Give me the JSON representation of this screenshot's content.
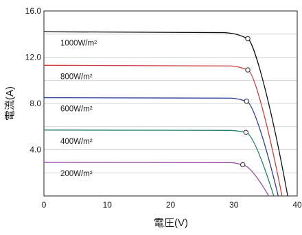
{
  "chart_data": {
    "type": "line",
    "title": "",
    "xlabel": "電圧(V)",
    "ylabel": "電流(A)",
    "xlim": [
      0,
      40
    ],
    "ylim": [
      0,
      16
    ],
    "x_ticks": [
      0,
      10,
      20,
      30,
      40
    ],
    "y_ticks": [
      4,
      8,
      12,
      16
    ],
    "x_tick_labels": [
      "0",
      "10",
      "20",
      "30",
      "40"
    ],
    "y_tick_labels": [
      "4.0",
      "8.0",
      "12.0",
      "16.0"
    ],
    "grid": "horizontal",
    "legend": "inline labels",
    "series": [
      {
        "name": "1000W/m²",
        "color": "#111111",
        "isc": 14.2,
        "voc": 38.5,
        "knee_v": 28.5,
        "mpp": {
          "v": 32.2,
          "i": 13.6
        },
        "points": [
          {
            "v": 0,
            "i": 14.2
          },
          {
            "v": 28.5,
            "i": 14.1
          },
          {
            "v": 30.5,
            "i": 13.9
          },
          {
            "v": 32.2,
            "i": 13.6
          },
          {
            "v": 33.5,
            "i": 12.9
          },
          {
            "v": 35.0,
            "i": 10.5
          },
          {
            "v": 36.5,
            "i": 6.6
          },
          {
            "v": 38.5,
            "i": 0
          }
        ]
      },
      {
        "name": "800W/m²",
        "color": "#d13a3a",
        "isc": 11.3,
        "voc": 37.6,
        "knee_v": 29.5,
        "mpp": {
          "v": 32.2,
          "i": 10.9
        },
        "points": [
          {
            "v": 0,
            "i": 11.3
          },
          {
            "v": 29.5,
            "i": 11.25
          },
          {
            "v": 31.0,
            "i": 11.1
          },
          {
            "v": 32.2,
            "i": 10.9
          },
          {
            "v": 34.5,
            "i": 9.6
          },
          {
            "v": 37.6,
            "i": 0
          }
        ]
      },
      {
        "name": "600W/m²",
        "color": "#2b3e9c",
        "isc": 8.5,
        "voc": 37.0,
        "knee_v": 29.5,
        "mpp": {
          "v": 32.0,
          "i": 8.2
        },
        "points": [
          {
            "v": 0,
            "i": 8.5
          },
          {
            "v": 29.5,
            "i": 8.45
          },
          {
            "v": 32.0,
            "i": 8.2
          },
          {
            "v": 35.0,
            "i": 5.7
          },
          {
            "v": 37.0,
            "i": 0
          }
        ]
      },
      {
        "name": "400W/m²",
        "color": "#1f7f6c",
        "isc": 5.7,
        "voc": 36.3,
        "knee_v": 29.5,
        "mpp": {
          "v": 31.9,
          "i": 5.5
        },
        "points": [
          {
            "v": 0,
            "i": 5.7
          },
          {
            "v": 29.5,
            "i": 5.65
          },
          {
            "v": 31.9,
            "i": 5.5
          },
          {
            "v": 34.5,
            "i": 3.7
          },
          {
            "v": 36.3,
            "i": 0
          }
        ]
      },
      {
        "name": "200W/m²",
        "color": "#9b4ea8",
        "isc": 2.9,
        "voc": 35.5,
        "knee_v": 29.5,
        "mpp": {
          "v": 31.4,
          "i": 2.7
        },
        "points": [
          {
            "v": 0,
            "i": 2.9
          },
          {
            "v": 29.5,
            "i": 2.85
          },
          {
            "v": 31.4,
            "i": 2.7
          },
          {
            "v": 34.0,
            "i": 1.7
          },
          {
            "v": 35.5,
            "i": 0
          }
        ]
      }
    ]
  }
}
